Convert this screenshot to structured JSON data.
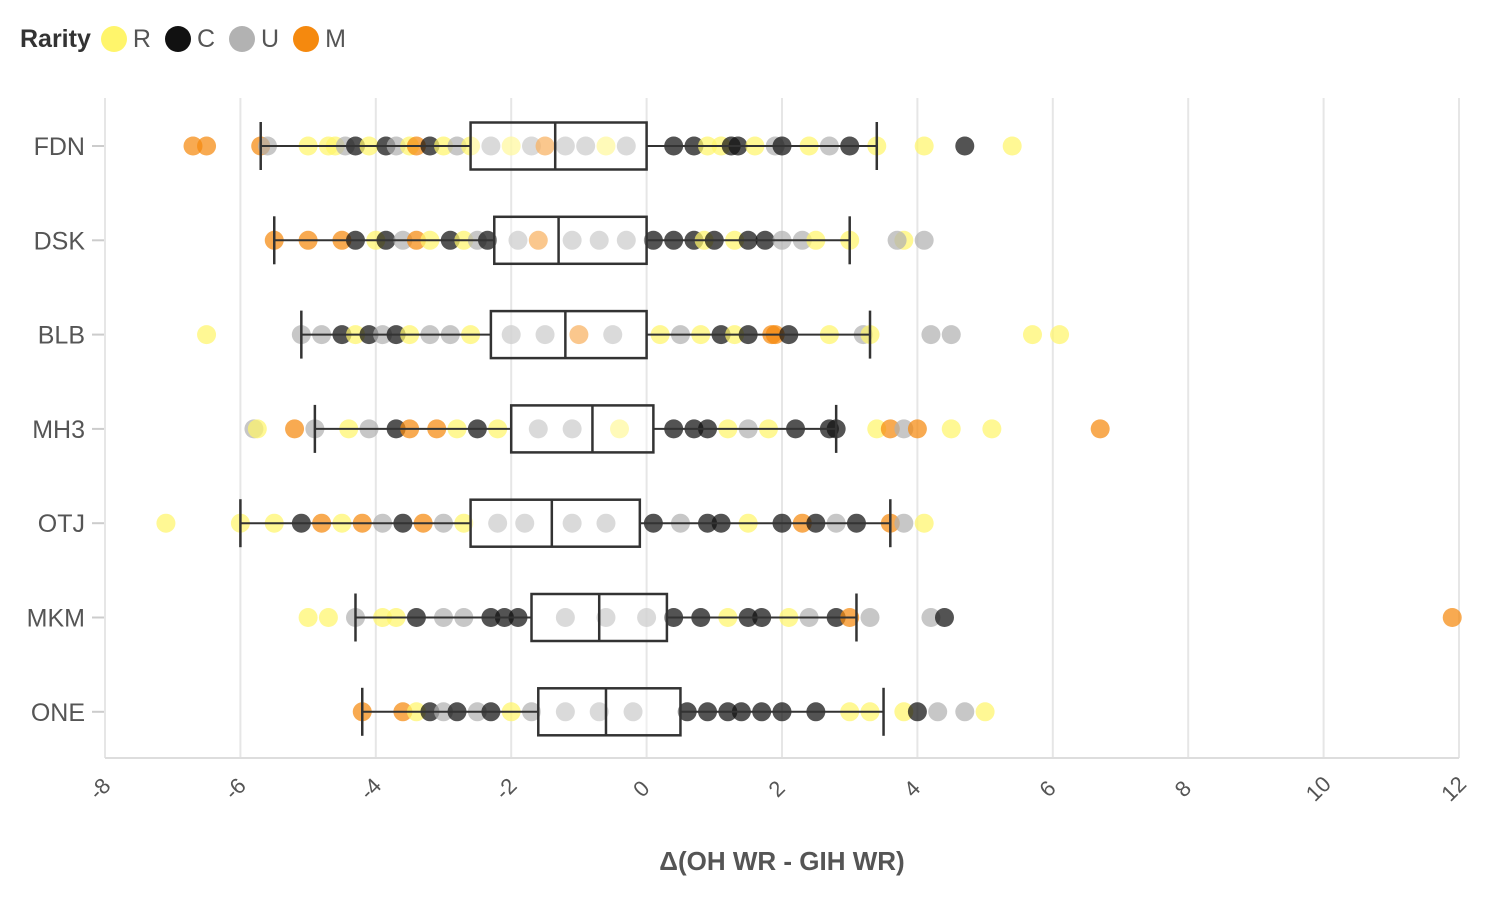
{
  "legend": {
    "title": "Rarity",
    "items": [
      {
        "label": "R",
        "color": "#FFF56B"
      },
      {
        "label": "C",
        "color": "#111111"
      },
      {
        "label": "U",
        "color": "#B2B2B2"
      },
      {
        "label": "M",
        "color": "#F5890E"
      }
    ]
  },
  "chart_data": {
    "type": "box-scatter",
    "xlabel": "Δ(OH WR - GIH WR)",
    "ylabel": "",
    "xlim": [
      -8,
      12
    ],
    "xticks": [
      -8,
      -6,
      -4,
      -2,
      0,
      2,
      4,
      6,
      8,
      10,
      12
    ],
    "categories": [
      "FDN",
      "DSK",
      "BLB",
      "MH3",
      "OTJ",
      "MKM",
      "ONE"
    ],
    "boxes": [
      {
        "set": "FDN",
        "whisker_low": -5.7,
        "q1": -2.6,
        "median": -1.35,
        "q3": 0.0,
        "whisker_high": 3.4
      },
      {
        "set": "DSK",
        "whisker_low": -5.5,
        "q1": -2.25,
        "median": -1.3,
        "q3": 0.0,
        "whisker_high": 3.0
      },
      {
        "set": "BLB",
        "whisker_low": -5.1,
        "q1": -2.3,
        "median": -1.2,
        "q3": 0.0,
        "whisker_high": 3.3
      },
      {
        "set": "MH3",
        "whisker_low": -4.9,
        "q1": -2.0,
        "median": -0.8,
        "q3": 0.1,
        "whisker_high": 2.8
      },
      {
        "set": "OTJ",
        "whisker_low": -6.0,
        "q1": -2.6,
        "median": -1.4,
        "q3": -0.1,
        "whisker_high": 3.6
      },
      {
        "set": "MKM",
        "whisker_low": -4.3,
        "q1": -1.7,
        "median": -0.7,
        "q3": 0.3,
        "whisker_high": 3.1
      },
      {
        "set": "ONE",
        "whisker_low": -4.2,
        "q1": -1.6,
        "median": -0.6,
        "q3": 0.5,
        "whisker_high": 3.5
      }
    ],
    "points": [
      {
        "set": "FDN",
        "rarity": "M",
        "x": -6.7
      },
      {
        "set": "FDN",
        "rarity": "M",
        "x": -6.5
      },
      {
        "set": "FDN",
        "rarity": "M",
        "x": -5.7
      },
      {
        "set": "FDN",
        "rarity": "U",
        "x": -5.6
      },
      {
        "set": "FDN",
        "rarity": "R",
        "x": -5.0
      },
      {
        "set": "FDN",
        "rarity": "R",
        "x": -4.7
      },
      {
        "set": "FDN",
        "rarity": "R",
        "x": -4.6
      },
      {
        "set": "FDN",
        "rarity": "U",
        "x": -4.45
      },
      {
        "set": "FDN",
        "rarity": "C",
        "x": -4.3
      },
      {
        "set": "FDN",
        "rarity": "R",
        "x": -4.1
      },
      {
        "set": "FDN",
        "rarity": "C",
        "x": -3.85
      },
      {
        "set": "FDN",
        "rarity": "U",
        "x": -3.7
      },
      {
        "set": "FDN",
        "rarity": "R",
        "x": -3.5
      },
      {
        "set": "FDN",
        "rarity": "M",
        "x": -3.4
      },
      {
        "set": "FDN",
        "rarity": "C",
        "x": -3.2
      },
      {
        "set": "FDN",
        "rarity": "R",
        "x": -3.0
      },
      {
        "set": "FDN",
        "rarity": "U",
        "x": -2.8
      },
      {
        "set": "FDN",
        "rarity": "R",
        "x": -2.6
      },
      {
        "set": "FDN",
        "rarity": "U",
        "x": -2.3
      },
      {
        "set": "FDN",
        "rarity": "R",
        "x": -2.0
      },
      {
        "set": "FDN",
        "rarity": "U",
        "x": -1.7
      },
      {
        "set": "FDN",
        "rarity": "M",
        "x": -1.5
      },
      {
        "set": "FDN",
        "rarity": "U",
        "x": -1.2
      },
      {
        "set": "FDN",
        "rarity": "U",
        "x": -0.9
      },
      {
        "set": "FDN",
        "rarity": "R",
        "x": -0.6
      },
      {
        "set": "FDN",
        "rarity": "U",
        "x": -0.3
      },
      {
        "set": "FDN",
        "rarity": "C",
        "x": 0.4
      },
      {
        "set": "FDN",
        "rarity": "C",
        "x": 0.7
      },
      {
        "set": "FDN",
        "rarity": "R",
        "x": 0.9
      },
      {
        "set": "FDN",
        "rarity": "R",
        "x": 1.1
      },
      {
        "set": "FDN",
        "rarity": "C",
        "x": 1.25
      },
      {
        "set": "FDN",
        "rarity": "C",
        "x": 1.35
      },
      {
        "set": "FDN",
        "rarity": "R",
        "x": 1.6
      },
      {
        "set": "FDN",
        "rarity": "U",
        "x": 1.9
      },
      {
        "set": "FDN",
        "rarity": "C",
        "x": 2.0
      },
      {
        "set": "FDN",
        "rarity": "R",
        "x": 2.4
      },
      {
        "set": "FDN",
        "rarity": "U",
        "x": 2.7
      },
      {
        "set": "FDN",
        "rarity": "C",
        "x": 3.0
      },
      {
        "set": "FDN",
        "rarity": "R",
        "x": 3.4
      },
      {
        "set": "FDN",
        "rarity": "R",
        "x": 4.1
      },
      {
        "set": "FDN",
        "rarity": "C",
        "x": 4.7
      },
      {
        "set": "FDN",
        "rarity": "R",
        "x": 5.4
      },
      {
        "set": "DSK",
        "rarity": "M",
        "x": -5.5
      },
      {
        "set": "DSK",
        "rarity": "M",
        "x": -5.0
      },
      {
        "set": "DSK",
        "rarity": "M",
        "x": -4.5
      },
      {
        "set": "DSK",
        "rarity": "C",
        "x": -4.3
      },
      {
        "set": "DSK",
        "rarity": "R",
        "x": -4.0
      },
      {
        "set": "DSK",
        "rarity": "C",
        "x": -3.85
      },
      {
        "set": "DSK",
        "rarity": "U",
        "x": -3.6
      },
      {
        "set": "DSK",
        "rarity": "M",
        "x": -3.4
      },
      {
        "set": "DSK",
        "rarity": "R",
        "x": -3.2
      },
      {
        "set": "DSK",
        "rarity": "C",
        "x": -2.9
      },
      {
        "set": "DSK",
        "rarity": "R",
        "x": -2.7
      },
      {
        "set": "DSK",
        "rarity": "U",
        "x": -2.5
      },
      {
        "set": "DSK",
        "rarity": "C",
        "x": -2.35
      },
      {
        "set": "DSK",
        "rarity": "U",
        "x": -1.9
      },
      {
        "set": "DSK",
        "rarity": "M",
        "x": -1.6
      },
      {
        "set": "DSK",
        "rarity": "U",
        "x": -1.1
      },
      {
        "set": "DSK",
        "rarity": "U",
        "x": -0.7
      },
      {
        "set": "DSK",
        "rarity": "U",
        "x": -0.3
      },
      {
        "set": "DSK",
        "rarity": "C",
        "x": 0.1
      },
      {
        "set": "DSK",
        "rarity": "C",
        "x": 0.4
      },
      {
        "set": "DSK",
        "rarity": "C",
        "x": 0.7
      },
      {
        "set": "DSK",
        "rarity": "R",
        "x": 0.85
      },
      {
        "set": "DSK",
        "rarity": "C",
        "x": 1.0
      },
      {
        "set": "DSK",
        "rarity": "R",
        "x": 1.3
      },
      {
        "set": "DSK",
        "rarity": "C",
        "x": 1.5
      },
      {
        "set": "DSK",
        "rarity": "C",
        "x": 1.75
      },
      {
        "set": "DSK",
        "rarity": "U",
        "x": 2.0
      },
      {
        "set": "DSK",
        "rarity": "U",
        "x": 2.3
      },
      {
        "set": "DSK",
        "rarity": "R",
        "x": 2.5
      },
      {
        "set": "DSK",
        "rarity": "R",
        "x": 3.0
      },
      {
        "set": "DSK",
        "rarity": "R",
        "x": 3.8
      },
      {
        "set": "DSK",
        "rarity": "U",
        "x": 3.7
      },
      {
        "set": "DSK",
        "rarity": "U",
        "x": 4.1
      },
      {
        "set": "BLB",
        "rarity": "R",
        "x": -6.5
      },
      {
        "set": "BLB",
        "rarity": "U",
        "x": -5.1
      },
      {
        "set": "BLB",
        "rarity": "U",
        "x": -4.8
      },
      {
        "set": "BLB",
        "rarity": "C",
        "x": -4.5
      },
      {
        "set": "BLB",
        "rarity": "R",
        "x": -4.3
      },
      {
        "set": "BLB",
        "rarity": "C",
        "x": -4.1
      },
      {
        "set": "BLB",
        "rarity": "U",
        "x": -3.9
      },
      {
        "set": "BLB",
        "rarity": "C",
        "x": -3.7
      },
      {
        "set": "BLB",
        "rarity": "R",
        "x": -3.5
      },
      {
        "set": "BLB",
        "rarity": "U",
        "x": -3.2
      },
      {
        "set": "BLB",
        "rarity": "U",
        "x": -2.9
      },
      {
        "set": "BLB",
        "rarity": "R",
        "x": -2.6
      },
      {
        "set": "BLB",
        "rarity": "U",
        "x": -2.0
      },
      {
        "set": "BLB",
        "rarity": "U",
        "x": -1.5
      },
      {
        "set": "BLB",
        "rarity": "M",
        "x": -1.0
      },
      {
        "set": "BLB",
        "rarity": "U",
        "x": -0.5
      },
      {
        "set": "BLB",
        "rarity": "R",
        "x": 0.2
      },
      {
        "set": "BLB",
        "rarity": "U",
        "x": 0.5
      },
      {
        "set": "BLB",
        "rarity": "R",
        "x": 0.8
      },
      {
        "set": "BLB",
        "rarity": "C",
        "x": 1.1
      },
      {
        "set": "BLB",
        "rarity": "R",
        "x": 1.3
      },
      {
        "set": "BLB",
        "rarity": "C",
        "x": 1.5
      },
      {
        "set": "BLB",
        "rarity": "M",
        "x": 1.85
      },
      {
        "set": "BLB",
        "rarity": "M",
        "x": 1.9
      },
      {
        "set": "BLB",
        "rarity": "C",
        "x": 2.1
      },
      {
        "set": "BLB",
        "rarity": "R",
        "x": 2.7
      },
      {
        "set": "BLB",
        "rarity": "U",
        "x": 3.2
      },
      {
        "set": "BLB",
        "rarity": "R",
        "x": 3.3
      },
      {
        "set": "BLB",
        "rarity": "U",
        "x": 4.2
      },
      {
        "set": "BLB",
        "rarity": "U",
        "x": 4.5
      },
      {
        "set": "BLB",
        "rarity": "R",
        "x": 5.7
      },
      {
        "set": "BLB",
        "rarity": "R",
        "x": 6.1
      },
      {
        "set": "MH3",
        "rarity": "U",
        "x": -5.8
      },
      {
        "set": "MH3",
        "rarity": "R",
        "x": -5.75
      },
      {
        "set": "MH3",
        "rarity": "M",
        "x": -5.2
      },
      {
        "set": "MH3",
        "rarity": "U",
        "x": -4.9
      },
      {
        "set": "MH3",
        "rarity": "R",
        "x": -4.4
      },
      {
        "set": "MH3",
        "rarity": "U",
        "x": -4.1
      },
      {
        "set": "MH3",
        "rarity": "C",
        "x": -3.7
      },
      {
        "set": "MH3",
        "rarity": "M",
        "x": -3.5
      },
      {
        "set": "MH3",
        "rarity": "M",
        "x": -3.1
      },
      {
        "set": "MH3",
        "rarity": "R",
        "x": -2.8
      },
      {
        "set": "MH3",
        "rarity": "C",
        "x": -2.5
      },
      {
        "set": "MH3",
        "rarity": "R",
        "x": -2.2
      },
      {
        "set": "MH3",
        "rarity": "U",
        "x": -1.6
      },
      {
        "set": "MH3",
        "rarity": "U",
        "x": -1.1
      },
      {
        "set": "MH3",
        "rarity": "R",
        "x": -0.4
      },
      {
        "set": "MH3",
        "rarity": "C",
        "x": 0.4
      },
      {
        "set": "MH3",
        "rarity": "C",
        "x": 0.7
      },
      {
        "set": "MH3",
        "rarity": "C",
        "x": 0.9
      },
      {
        "set": "MH3",
        "rarity": "R",
        "x": 1.2
      },
      {
        "set": "MH3",
        "rarity": "U",
        "x": 1.5
      },
      {
        "set": "MH3",
        "rarity": "R",
        "x": 1.8
      },
      {
        "set": "MH3",
        "rarity": "C",
        "x": 2.2
      },
      {
        "set": "MH3",
        "rarity": "C",
        "x": 2.7
      },
      {
        "set": "MH3",
        "rarity": "C",
        "x": 2.8
      },
      {
        "set": "MH3",
        "rarity": "R",
        "x": 3.4
      },
      {
        "set": "MH3",
        "rarity": "M",
        "x": 3.6
      },
      {
        "set": "MH3",
        "rarity": "U",
        "x": 3.8
      },
      {
        "set": "MH3",
        "rarity": "M",
        "x": 4.0
      },
      {
        "set": "MH3",
        "rarity": "R",
        "x": 4.5
      },
      {
        "set": "MH3",
        "rarity": "R",
        "x": 5.1
      },
      {
        "set": "MH3",
        "rarity": "M",
        "x": 6.7
      },
      {
        "set": "OTJ",
        "rarity": "R",
        "x": -7.1
      },
      {
        "set": "OTJ",
        "rarity": "R",
        "x": -6.0
      },
      {
        "set": "OTJ",
        "rarity": "R",
        "x": -5.5
      },
      {
        "set": "OTJ",
        "rarity": "C",
        "x": -5.1
      },
      {
        "set": "OTJ",
        "rarity": "M",
        "x": -4.8
      },
      {
        "set": "OTJ",
        "rarity": "R",
        "x": -4.5
      },
      {
        "set": "OTJ",
        "rarity": "M",
        "x": -4.2
      },
      {
        "set": "OTJ",
        "rarity": "U",
        "x": -3.9
      },
      {
        "set": "OTJ",
        "rarity": "C",
        "x": -3.6
      },
      {
        "set": "OTJ",
        "rarity": "M",
        "x": -3.3
      },
      {
        "set": "OTJ",
        "rarity": "U",
        "x": -3.0
      },
      {
        "set": "OTJ",
        "rarity": "R",
        "x": -2.7
      },
      {
        "set": "OTJ",
        "rarity": "U",
        "x": -2.2
      },
      {
        "set": "OTJ",
        "rarity": "U",
        "x": -1.8
      },
      {
        "set": "OTJ",
        "rarity": "U",
        "x": -1.1
      },
      {
        "set": "OTJ",
        "rarity": "U",
        "x": -0.6
      },
      {
        "set": "OTJ",
        "rarity": "C",
        "x": 0.1
      },
      {
        "set": "OTJ",
        "rarity": "U",
        "x": 0.5
      },
      {
        "set": "OTJ",
        "rarity": "C",
        "x": 0.9
      },
      {
        "set": "OTJ",
        "rarity": "C",
        "x": 1.1
      },
      {
        "set": "OTJ",
        "rarity": "R",
        "x": 1.5
      },
      {
        "set": "OTJ",
        "rarity": "C",
        "x": 2.0
      },
      {
        "set": "OTJ",
        "rarity": "M",
        "x": 2.3
      },
      {
        "set": "OTJ",
        "rarity": "C",
        "x": 2.5
      },
      {
        "set": "OTJ",
        "rarity": "U",
        "x": 2.8
      },
      {
        "set": "OTJ",
        "rarity": "C",
        "x": 3.1
      },
      {
        "set": "OTJ",
        "rarity": "M",
        "x": 3.6
      },
      {
        "set": "OTJ",
        "rarity": "U",
        "x": 3.8
      },
      {
        "set": "OTJ",
        "rarity": "R",
        "x": 4.1
      },
      {
        "set": "MKM",
        "rarity": "R",
        "x": -5.0
      },
      {
        "set": "MKM",
        "rarity": "R",
        "x": -4.7
      },
      {
        "set": "MKM",
        "rarity": "U",
        "x": -4.3
      },
      {
        "set": "MKM",
        "rarity": "R",
        "x": -3.9
      },
      {
        "set": "MKM",
        "rarity": "R",
        "x": -3.7
      },
      {
        "set": "MKM",
        "rarity": "C",
        "x": -3.4
      },
      {
        "set": "MKM",
        "rarity": "U",
        "x": -3.0
      },
      {
        "set": "MKM",
        "rarity": "U",
        "x": -2.7
      },
      {
        "set": "MKM",
        "rarity": "C",
        "x": -2.3
      },
      {
        "set": "MKM",
        "rarity": "C",
        "x": -2.1
      },
      {
        "set": "MKM",
        "rarity": "C",
        "x": -1.9
      },
      {
        "set": "MKM",
        "rarity": "U",
        "x": -1.2
      },
      {
        "set": "MKM",
        "rarity": "U",
        "x": -0.6
      },
      {
        "set": "MKM",
        "rarity": "U",
        "x": 0.0
      },
      {
        "set": "MKM",
        "rarity": "C",
        "x": 0.4
      },
      {
        "set": "MKM",
        "rarity": "C",
        "x": 0.8
      },
      {
        "set": "MKM",
        "rarity": "R",
        "x": 1.2
      },
      {
        "set": "MKM",
        "rarity": "C",
        "x": 1.5
      },
      {
        "set": "MKM",
        "rarity": "C",
        "x": 1.7
      },
      {
        "set": "MKM",
        "rarity": "R",
        "x": 2.1
      },
      {
        "set": "MKM",
        "rarity": "U",
        "x": 2.4
      },
      {
        "set": "MKM",
        "rarity": "C",
        "x": 2.8
      },
      {
        "set": "MKM",
        "rarity": "M",
        "x": 3.0
      },
      {
        "set": "MKM",
        "rarity": "U",
        "x": 3.3
      },
      {
        "set": "MKM",
        "rarity": "U",
        "x": 4.2
      },
      {
        "set": "MKM",
        "rarity": "C",
        "x": 4.4
      },
      {
        "set": "MKM",
        "rarity": "M",
        "x": 11.9
      },
      {
        "set": "ONE",
        "rarity": "M",
        "x": -4.2
      },
      {
        "set": "ONE",
        "rarity": "M",
        "x": -3.6
      },
      {
        "set": "ONE",
        "rarity": "R",
        "x": -3.4
      },
      {
        "set": "ONE",
        "rarity": "C",
        "x": -3.2
      },
      {
        "set": "ONE",
        "rarity": "U",
        "x": -3.0
      },
      {
        "set": "ONE",
        "rarity": "C",
        "x": -2.8
      },
      {
        "set": "ONE",
        "rarity": "U",
        "x": -2.5
      },
      {
        "set": "ONE",
        "rarity": "C",
        "x": -2.3
      },
      {
        "set": "ONE",
        "rarity": "R",
        "x": -2.0
      },
      {
        "set": "ONE",
        "rarity": "U",
        "x": -1.7
      },
      {
        "set": "ONE",
        "rarity": "U",
        "x": -1.2
      },
      {
        "set": "ONE",
        "rarity": "U",
        "x": -0.7
      },
      {
        "set": "ONE",
        "rarity": "U",
        "x": -0.2
      },
      {
        "set": "ONE",
        "rarity": "C",
        "x": 0.6
      },
      {
        "set": "ONE",
        "rarity": "C",
        "x": 0.9
      },
      {
        "set": "ONE",
        "rarity": "C",
        "x": 1.2
      },
      {
        "set": "ONE",
        "rarity": "C",
        "x": 1.4
      },
      {
        "set": "ONE",
        "rarity": "C",
        "x": 1.7
      },
      {
        "set": "ONE",
        "rarity": "C",
        "x": 2.0
      },
      {
        "set": "ONE",
        "rarity": "C",
        "x": 2.5
      },
      {
        "set": "ONE",
        "rarity": "R",
        "x": 3.0
      },
      {
        "set": "ONE",
        "rarity": "R",
        "x": 3.3
      },
      {
        "set": "ONE",
        "rarity": "R",
        "x": 3.8
      },
      {
        "set": "ONE",
        "rarity": "C",
        "x": 4.0
      },
      {
        "set": "ONE",
        "rarity": "U",
        "x": 4.3
      },
      {
        "set": "ONE",
        "rarity": "U",
        "x": 4.7
      },
      {
        "set": "ONE",
        "rarity": "R",
        "x": 5.0
      }
    ]
  }
}
